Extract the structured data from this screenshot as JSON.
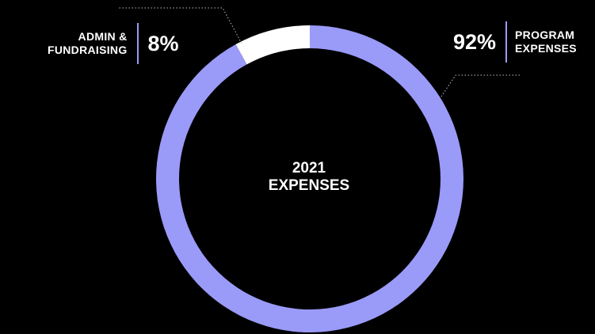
{
  "chart_data": {
    "type": "pie",
    "style": "donut",
    "center_label": "2021\nEXPENSES",
    "slices": [
      {
        "label": "PROGRAM\nEXPENSES",
        "value": 92,
        "display": "92%",
        "color": "#9a9af8"
      },
      {
        "label": "ADMIN &\nFUNDRAISING",
        "value": 8,
        "display": "8%",
        "color": "#ffffff"
      }
    ],
    "legend": "none"
  },
  "colors": {
    "background": "#000000",
    "accent": "#9a9af8",
    "leader_line": "#bdbdbd"
  }
}
